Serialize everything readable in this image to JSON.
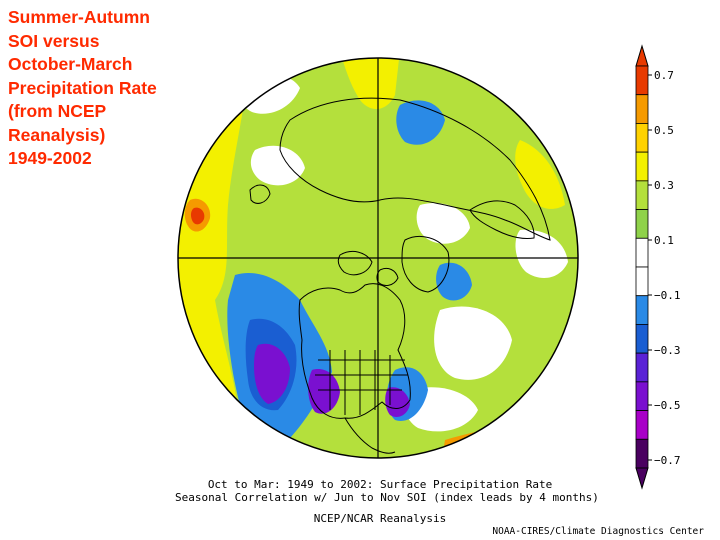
{
  "title_lines": [
    "Summer-Autumn",
    "SOI versus",
    "October-March",
    "Precipitation Rate",
    "(from NCEP",
    "Reanalysis)",
    "1949-2002"
  ],
  "caption": {
    "line1": "Oct to Mar: 1949 to 2002: Surface Precipitation Rate",
    "line2": "Seasonal Correlation w/ Jun to Nov SOI (index leads by 4 months)",
    "line3": "NCEP/NCAR Reanalysis"
  },
  "credit": "NOAA-CIRES/Climate Diagnostics Center",
  "colorbar": {
    "tick_labels": [
      "0.7",
      "0.5",
      "0.3",
      "0.1",
      "−0.1",
      "−0.3",
      "−0.5",
      "−0.7"
    ],
    "colors": [
      "#e83a00",
      "#f59a00",
      "#ffd200",
      "#f3f000",
      "#b4e03c",
      "#8fd24a",
      "#ffffff",
      "#ffffff",
      "#2a8ae6",
      "#1a5ed2",
      "#5a22d6",
      "#7a10d0",
      "#a800c8",
      "#4a0060"
    ]
  },
  "map": {
    "projection": "north-polar-stereographic",
    "colors": {
      "strong_positive": "#e83a00",
      "positive_orange": "#f59a00",
      "positive_yellow": "#f3f000",
      "positive_green": "#b4e03c",
      "neutral": "#ffffff",
      "negative_blue": "#2a8ae6",
      "negative_dark_blue": "#1a5ed2",
      "negative_purple": "#7a10d0"
    }
  }
}
